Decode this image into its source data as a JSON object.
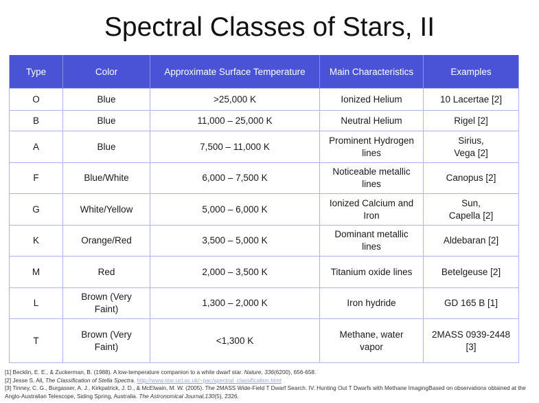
{
  "title": "Spectral Classes of Stars, II",
  "table": {
    "headers": [
      "Type",
      "Color",
      "Approximate Surface Temperature",
      "Main Characteristics",
      "Examples"
    ],
    "rows": [
      {
        "type": "O",
        "color": "Blue",
        "temp": ">25,000 K",
        "char": "Ionized Helium",
        "ex": "10 Lacertae [2]"
      },
      {
        "type": "B",
        "color": "Blue",
        "temp": "11,000 – 25,000 K",
        "char": "Neutral Helium",
        "ex": "Rigel [2]"
      },
      {
        "type": "A",
        "color": "Blue",
        "temp": "7,500 – 11,000 K",
        "char": "Prominent Hydrogen lines",
        "ex": "Sirius, Vega [2]"
      },
      {
        "type": "F",
        "color": "Blue/White",
        "temp": "6,000 – 7,500 K",
        "char": "Noticeable metallic lines",
        "ex": "Canopus [2]"
      },
      {
        "type": "G",
        "color": "White/Yellow",
        "temp": "5,000 – 6,000 K",
        "char": "Ionized Calcium and Iron",
        "ex": "Sun, Capella [2]"
      },
      {
        "type": "K",
        "color": "Orange/Red",
        "temp": "3,500 – 5,000 K",
        "char": "Dominant metallic lines",
        "ex": "Aldebaran [2]"
      },
      {
        "type": "M",
        "color": "Red",
        "temp": "2,000 – 3,500 K",
        "char": "Titanium oxide lines",
        "ex": "Betelgeuse [2]"
      },
      {
        "type": "L",
        "color": "Brown (Very Faint)",
        "temp": "1,300 – 2,000 K",
        "char": "Iron hydride",
        "ex": "GD 165 B [1]"
      },
      {
        "type": "T",
        "color": "Brown (Very Faint)",
        "temp": "<1,300 K",
        "char": "Methane, water vapor",
        "ex": "2MASS 0939-2448 [3]"
      }
    ]
  },
  "references": {
    "r1_pre": "[1] Becklin, E. E., & Zuckerman, B. (1988). A low-temperature companion to a white dwarf star. ",
    "r1_journal": "Nature, 336",
    "r1_post": "(6200), 656-658.",
    "r2_pre": "[2] Jesse S. All, ",
    "r2_title": "The Classification of Stella Spectra",
    "r2_mid": ". ",
    "r2_link": "http://www.star.ucl.ac.uk/~pac/spectral_classification.html",
    "r3_pre": "[3] Tinney, C. G., Burgasser, A. J., Kirkpatrick, J. D., & McElwain, M. W. (2005). The 2MASS Wide-Field T Dwarf Search. IV. Hunting Out T Dwarfs with Methane ImagingBased on observations obtained at the Anglo-Australian Telescope, Siding Spring, Australia. ",
    "r3_journal": "The Astronomical Journal,130",
    "r3_post": "(5), 2326."
  },
  "colors": {
    "header_bg": "#4a53d6",
    "grid": "#aeb3ea",
    "link": "#9aa3d8"
  }
}
